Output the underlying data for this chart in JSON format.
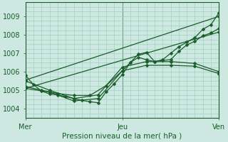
{
  "xlabel": "Pression niveau de la mer( hPa )",
  "ylim": [
    1003.5,
    1009.5
  ],
  "xlim": [
    0,
    48
  ],
  "yticks": [
    1004,
    1005,
    1006,
    1007,
    1008,
    1009
  ],
  "xtick_labels": [
    "Mer",
    "Jeu",
    "Ven"
  ],
  "xtick_positions": [
    0,
    24,
    48
  ],
  "bg_color": "#cce8e0",
  "grid_color": "#99ccbb",
  "line_color": "#1a5c2a",
  "markersize": 2.5,
  "series": [
    {
      "x": [
        0,
        2,
        4,
        6,
        8,
        10,
        12,
        14,
        16,
        18,
        20,
        22,
        24,
        26,
        28,
        30,
        32,
        34,
        36,
        38,
        40,
        42,
        44,
        46,
        48
      ],
      "y": [
        1005.8,
        1005.3,
        1004.95,
        1004.8,
        1004.75,
        1004.65,
        1004.55,
        1004.45,
        1004.38,
        1004.32,
        1004.92,
        1005.35,
        1005.85,
        1006.5,
        1006.95,
        1007.05,
        1006.55,
        1006.65,
        1007.0,
        1007.35,
        1007.6,
        1007.85,
        1008.3,
        1008.55,
        1009.2
      ]
    },
    {
      "x": [
        0,
        4,
        8,
        12,
        16,
        20,
        24,
        26,
        28,
        30,
        32,
        34,
        36,
        38,
        40,
        42,
        44,
        46,
        48
      ],
      "y": [
        1005.2,
        1005.0,
        1004.82,
        1004.72,
        1004.72,
        1005.25,
        1006.05,
        1006.5,
        1006.78,
        1006.65,
        1006.55,
        1006.62,
        1006.65,
        1007.1,
        1007.45,
        1007.65,
        1007.95,
        1008.1,
        1008.35
      ]
    },
    {
      "x": [
        0,
        48
      ],
      "y": [
        1005.55,
        1009.0
      ]
    },
    {
      "x": [
        0,
        48
      ],
      "y": [
        1005.1,
        1008.15
      ]
    },
    {
      "x": [
        0,
        6,
        12,
        18,
        24,
        30,
        36,
        42,
        48
      ],
      "y": [
        1005.5,
        1005.0,
        1004.55,
        1004.75,
        1006.25,
        1006.55,
        1006.55,
        1006.45,
        1006.0
      ]
    },
    {
      "x": [
        0,
        6,
        12,
        18,
        24,
        30,
        36,
        42,
        48
      ],
      "y": [
        1005.1,
        1004.9,
        1004.42,
        1004.55,
        1006.05,
        1006.35,
        1006.35,
        1006.3,
        1005.9
      ]
    }
  ]
}
